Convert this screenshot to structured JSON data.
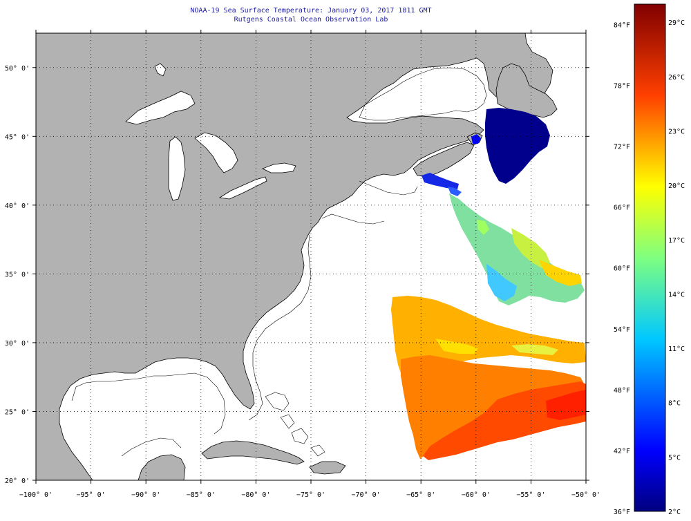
{
  "header": {
    "title": "NOAA-19 Sea Surface Temperature:  January 03, 2017 1811 GMT",
    "subtitle": "Rutgens Coastal Ocean Observation Lab"
  },
  "map": {
    "lon_range": [
      -100,
      -50
    ],
    "lat_range": [
      20,
      52.5
    ],
    "lon_ticks": [
      {
        "v": -100,
        "label": "−100° 0'"
      },
      {
        "v": -95,
        "label": "−95° 0'"
      },
      {
        "v": -90,
        "label": "−90° 0'"
      },
      {
        "v": -85,
        "label": "−85° 0'"
      },
      {
        "v": -80,
        "label": "−80° 0'"
      },
      {
        "v": -75,
        "label": "−75° 0'"
      },
      {
        "v": -70,
        "label": "−70° 0'"
      },
      {
        "v": -65,
        "label": "−65° 0'"
      },
      {
        "v": -60,
        "label": "−60° 0'"
      },
      {
        "v": -55,
        "label": "−55° 0'"
      },
      {
        "v": -50,
        "label": "−50° 0'"
      }
    ],
    "lat_ticks": [
      {
        "v": 20,
        "label": "20° 0'"
      },
      {
        "v": 25,
        "label": "25° 0'"
      },
      {
        "v": 30,
        "label": "30° 0'"
      },
      {
        "v": 35,
        "label": "35° 0'"
      },
      {
        "v": 40,
        "label": "40° 0'"
      },
      {
        "v": 45,
        "label": "45° 0'"
      },
      {
        "v": 50,
        "label": "50° 0'"
      }
    ],
    "colors": {
      "land": "#b2b2b2",
      "water": "#ffffff",
      "grid": "#000000",
      "coast": "#000000"
    }
  },
  "colorbar": {
    "range_c": [
      2,
      30
    ],
    "range_f": [
      36,
      86
    ],
    "celsius_ticks": [
      {
        "v": 29,
        "label": "29°C"
      },
      {
        "v": 26,
        "label": "26°C"
      },
      {
        "v": 23,
        "label": "23°C"
      },
      {
        "v": 20,
        "label": "20°C"
      },
      {
        "v": 17,
        "label": "17°C"
      },
      {
        "v": 14,
        "label": "14°C"
      },
      {
        "v": 11,
        "label": "11°C"
      },
      {
        "v": 8,
        "label": "8°C"
      },
      {
        "v": 5,
        "label": "5°C"
      },
      {
        "v": 2,
        "label": "2°C"
      }
    ],
    "fahrenheit_ticks": [
      {
        "v": 84,
        "label": "84°F"
      },
      {
        "v": 78,
        "label": "78°F"
      },
      {
        "v": 72,
        "label": "72°F"
      },
      {
        "v": 66,
        "label": "66°F"
      },
      {
        "v": 60,
        "label": "60°F"
      },
      {
        "v": 54,
        "label": "54°F"
      },
      {
        "v": 48,
        "label": "48°F"
      },
      {
        "v": 42,
        "label": "42°F"
      },
      {
        "v": 36,
        "label": "36°F"
      }
    ]
  }
}
